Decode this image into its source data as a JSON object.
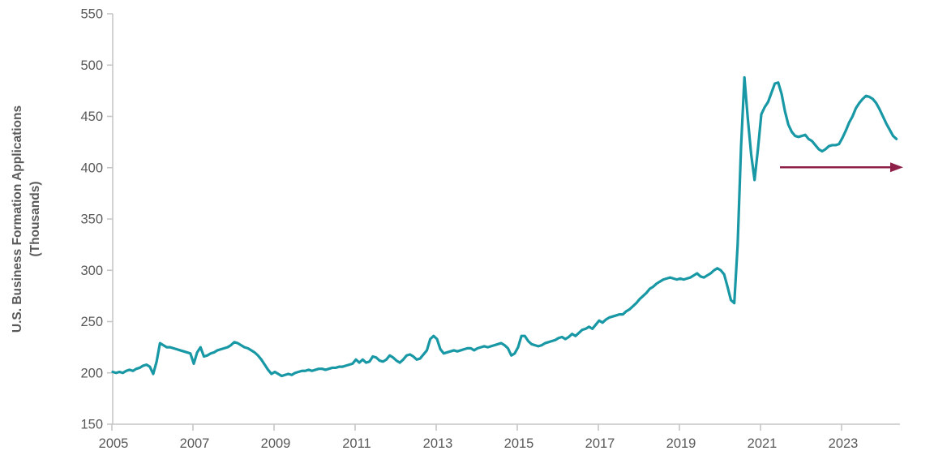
{
  "chart_data": {
    "type": "line",
    "title": "",
    "ylabel_line1": "U.S. Business Formation Applications",
    "ylabel_line2": "(Thousands)",
    "xlabel": "",
    "ylim": [
      150,
      550
    ],
    "y_ticks": [
      150,
      200,
      250,
      300,
      350,
      400,
      450,
      500,
      550
    ],
    "x_tick_labels": [
      "2005",
      "2007",
      "2009",
      "2011",
      "2013",
      "2015",
      "2017",
      "2019",
      "2021",
      "2023"
    ],
    "x_tick_years": [
      2005,
      2007,
      2009,
      2011,
      2013,
      2015,
      2017,
      2019,
      2021,
      2023
    ],
    "frequency": "monthly",
    "x_start_year": 2005,
    "x_start_month": 1,
    "x_end_year": 2024,
    "x_end_month": 5,
    "grid": "off",
    "legend": "none",
    "series": [
      {
        "name": "U.S. Business Formation Applications (Thousands)",
        "color": "#1897A5",
        "values": [
          201,
          200,
          201,
          200,
          202,
          203,
          202,
          204,
          205,
          207,
          208,
          206,
          199,
          211,
          229,
          227,
          225,
          225,
          224,
          223,
          222,
          221,
          220,
          219,
          209,
          220,
          225,
          216,
          217,
          219,
          220,
          222,
          223,
          224,
          225,
          227,
          230,
          229,
          227,
          225,
          224,
          222,
          220,
          217,
          213,
          208,
          203,
          199,
          201,
          199,
          197,
          198,
          199,
          198,
          200,
          201,
          202,
          202,
          203,
          202,
          203,
          204,
          204,
          203,
          204,
          205,
          205,
          206,
          206,
          207,
          208,
          209,
          213,
          210,
          213,
          210,
          211,
          216,
          215,
          212,
          211,
          213,
          217,
          215,
          212,
          210,
          213,
          217,
          218,
          216,
          213,
          214,
          218,
          222,
          233,
          236,
          233,
          223,
          219,
          220,
          221,
          222,
          221,
          222,
          223,
          224,
          224,
          222,
          224,
          225,
          226,
          225,
          226,
          227,
          228,
          229,
          227,
          224,
          217,
          219,
          225,
          236,
          236,
          231,
          228,
          227,
          226,
          227,
          229,
          230,
          231,
          232,
          234,
          235,
          233,
          235,
          238,
          236,
          239,
          242,
          243,
          245,
          243,
          247,
          251,
          249,
          252,
          254,
          255,
          256,
          257,
          257,
          260,
          262,
          265,
          268,
          272,
          275,
          278,
          282,
          284,
          287,
          289,
          291,
          292,
          293,
          292,
          291,
          292,
          291,
          292,
          293,
          295,
          297,
          294,
          293,
          295,
          297,
          300,
          302,
          300,
          296,
          284,
          271,
          268,
          325,
          420,
          488,
          448,
          413,
          388,
          418,
          452,
          459,
          464,
          473,
          482,
          483,
          472,
          455,
          442,
          435,
          431,
          430,
          431,
          432,
          428,
          426,
          422,
          418,
          416,
          418,
          421,
          422,
          422,
          423,
          429,
          436,
          444,
          450,
          458,
          463,
          467,
          470,
          469,
          467,
          463,
          457,
          450,
          443,
          437,
          431,
          428
        ]
      }
    ],
    "annotation_arrow": {
      "shape": "horizontal-arrow-right",
      "value": 400,
      "x_start_year_decimal": 2021.46,
      "x_end_year_decimal": 2024.5,
      "color": "#8E1F48"
    },
    "colors": {
      "line": "#1897A5",
      "arrow": "#8E1F48",
      "axis": "#C6C6C6",
      "tick_text": "#595959",
      "axis_title_text": "#595959",
      "background": "#FFFFFF"
    }
  }
}
